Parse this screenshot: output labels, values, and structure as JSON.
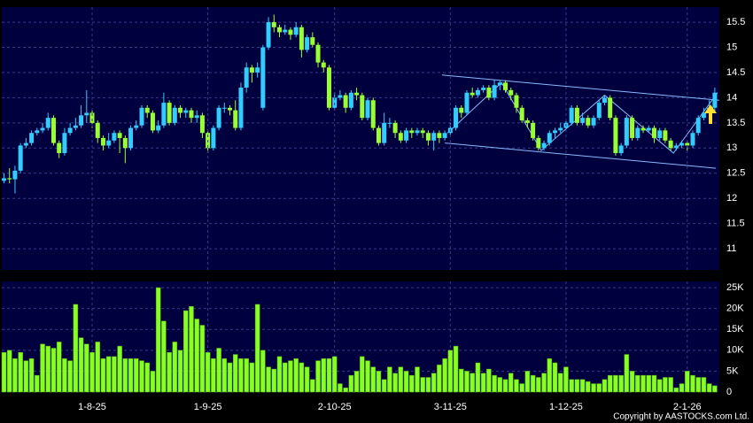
{
  "chart_data": [
    {
      "type": "candlestick",
      "up_color": "#33ccff",
      "down_color": "#99ff33",
      "grid": true,
      "ylim": [
        10.58,
        15.8
      ],
      "yticks": [
        11,
        11.5,
        12,
        12.5,
        13,
        13.5,
        14,
        14.5,
        15,
        15.5
      ],
      "open": [
        12.35,
        12.4,
        12.38,
        12.55,
        13.05,
        13.1,
        13.3,
        13.35,
        13.4,
        13.6,
        13.1,
        12.9,
        13.3,
        13.4,
        13.45,
        13.65,
        13.7,
        13.5,
        13.2,
        13.05,
        13.15,
        13.3,
        13.2,
        13.0,
        13.4,
        13.45,
        13.8,
        13.7,
        13.35,
        13.45,
        13.9,
        13.5,
        13.8,
        13.7,
        13.75,
        13.6,
        13.65,
        13.3,
        13.0,
        13.4,
        13.8,
        13.8,
        13.75,
        13.4,
        14.2,
        14.6,
        14.5,
        13.8,
        15.0,
        15.5,
        15.4,
        15.3,
        15.35,
        15.25,
        15.4,
        14.95,
        15.2,
        15.05,
        14.7,
        14.6,
        13.8,
        14.0,
        14.05,
        13.8,
        14.1,
        14.05,
        13.6,
        13.95,
        13.4,
        13.1,
        13.5,
        13.5,
        13.3,
        13.15,
        13.35,
        13.3,
        13.35,
        13.3,
        13.15,
        13.3,
        13.2,
        13.3,
        13.4,
        13.8,
        13.7,
        14.1,
        14.05,
        14.15,
        14.2,
        14.0,
        14.25,
        14.3,
        14.15,
        14.05,
        13.8,
        13.55,
        13.5,
        13.2,
        13.0,
        13.1,
        13.3,
        13.35,
        13.4,
        13.5,
        13.8,
        13.5,
        13.6,
        13.45,
        13.6,
        13.9,
        14.0,
        13.6,
        12.9,
        13.05,
        13.6,
        13.2,
        13.4,
        13.35,
        13.4,
        13.2,
        13.35,
        13.15,
        13.0,
        13.05,
        13.1,
        13.05,
        13.3,
        13.6,
        13.7,
        13.8
      ],
      "high": [
        12.5,
        12.6,
        12.65,
        13.1,
        13.2,
        13.35,
        13.4,
        13.5,
        13.7,
        13.65,
        13.15,
        13.4,
        13.5,
        13.6,
        13.85,
        14.15,
        13.75,
        13.55,
        13.25,
        13.3,
        13.35,
        13.35,
        13.25,
        13.45,
        13.55,
        13.85,
        13.85,
        13.75,
        13.55,
        14.1,
        13.95,
        13.85,
        13.85,
        13.8,
        13.8,
        13.75,
        13.7,
        13.35,
        13.45,
        13.85,
        13.9,
        13.85,
        13.95,
        14.3,
        14.7,
        14.65,
        14.7,
        15.05,
        15.6,
        15.65,
        15.45,
        15.45,
        15.4,
        15.5,
        15.45,
        15.25,
        15.3,
        15.1,
        14.75,
        14.65,
        14.1,
        14.15,
        14.1,
        14.15,
        14.2,
        14.1,
        14.0,
        14.0,
        13.45,
        13.7,
        13.6,
        13.55,
        13.35,
        13.4,
        13.4,
        13.4,
        13.4,
        13.35,
        13.35,
        13.35,
        13.35,
        13.5,
        13.85,
        13.85,
        14.15,
        14.2,
        14.2,
        14.25,
        14.25,
        14.35,
        14.35,
        14.35,
        14.2,
        14.1,
        13.85,
        13.6,
        13.55,
        13.25,
        13.15,
        13.35,
        13.4,
        13.5,
        13.55,
        13.85,
        13.85,
        13.7,
        13.65,
        13.65,
        13.95,
        14.05,
        14.05,
        13.65,
        13.1,
        13.65,
        13.65,
        13.45,
        13.45,
        13.45,
        13.45,
        13.4,
        13.4,
        13.2,
        13.1,
        13.15,
        13.15,
        13.35,
        13.65,
        13.8,
        13.95,
        14.2
      ],
      "low": [
        12.3,
        12.3,
        12.1,
        12.5,
        13.0,
        13.05,
        13.25,
        13.3,
        13.35,
        13.05,
        12.8,
        12.85,
        13.25,
        13.35,
        13.4,
        13.5,
        13.4,
        13.1,
        12.95,
        13.0,
        13.1,
        12.9,
        12.7,
        12.95,
        13.35,
        13.4,
        13.6,
        13.3,
        13.3,
        13.4,
        13.45,
        13.45,
        13.6,
        13.6,
        13.5,
        13.5,
        13.2,
        12.9,
        12.95,
        13.35,
        13.7,
        13.65,
        13.35,
        13.35,
        14.1,
        14.3,
        14.4,
        13.75,
        14.95,
        15.3,
        15.2,
        15.25,
        15.15,
        15.2,
        14.8,
        14.9,
        15.0,
        14.6,
        14.5,
        13.75,
        13.75,
        13.95,
        13.7,
        13.75,
        13.95,
        13.55,
        13.55,
        13.35,
        13.05,
        13.05,
        13.4,
        13.2,
        13.1,
        13.1,
        13.2,
        13.25,
        13.2,
        13.05,
        12.95,
        13.1,
        13.15,
        13.25,
        13.35,
        13.6,
        13.65,
        14.0,
        14.0,
        14.1,
        13.95,
        13.95,
        14.15,
        14.1,
        13.95,
        13.7,
        13.5,
        13.4,
        13.15,
        12.95,
        12.95,
        13.05,
        13.2,
        13.3,
        13.35,
        13.45,
        13.45,
        13.45,
        13.4,
        13.4,
        13.55,
        13.85,
        13.55,
        12.85,
        12.85,
        13.0,
        13.15,
        13.15,
        13.3,
        13.3,
        13.1,
        13.15,
        13.1,
        12.95,
        12.95,
        13.0,
        12.95,
        13.0,
        13.25,
        13.55,
        13.65,
        13.7
      ],
      "close": [
        12.4,
        12.38,
        12.55,
        13.05,
        13.1,
        13.3,
        13.35,
        13.4,
        13.6,
        13.1,
        12.9,
        13.3,
        13.4,
        13.45,
        13.65,
        13.7,
        13.5,
        13.2,
        13.05,
        13.15,
        13.3,
        13.2,
        13.0,
        13.4,
        13.45,
        13.8,
        13.7,
        13.35,
        13.45,
        13.9,
        13.5,
        13.8,
        13.7,
        13.75,
        13.6,
        13.65,
        13.3,
        13.0,
        13.4,
        13.8,
        13.8,
        13.75,
        13.4,
        14.2,
        14.6,
        14.5,
        14.6,
        15.0,
        15.5,
        15.4,
        15.3,
        15.35,
        15.25,
        15.4,
        14.95,
        15.2,
        15.05,
        14.7,
        14.6,
        13.8,
        14.0,
        14.05,
        13.8,
        14.1,
        14.05,
        13.6,
        13.95,
        13.4,
        13.1,
        13.5,
        13.5,
        13.3,
        13.15,
        13.35,
        13.3,
        13.35,
        13.3,
        13.15,
        13.3,
        13.2,
        13.3,
        13.4,
        13.8,
        13.7,
        14.1,
        14.05,
        14.15,
        14.2,
        14.0,
        14.25,
        14.3,
        14.15,
        14.05,
        13.8,
        13.55,
        13.5,
        13.2,
        13.0,
        13.1,
        13.3,
        13.35,
        13.4,
        13.5,
        13.8,
        13.5,
        13.6,
        13.45,
        13.6,
        13.9,
        14.0,
        13.6,
        12.9,
        13.05,
        13.6,
        13.2,
        13.4,
        13.35,
        13.4,
        13.2,
        13.35,
        13.15,
        13.0,
        13.05,
        13.1,
        13.05,
        13.3,
        13.6,
        13.7,
        13.8,
        14.1
      ],
      "trendline_color": "#88bbff",
      "trendlines": [
        {
          "x": [
            79.5,
            129.8
          ],
          "y": [
            14.45,
            13.95
          ]
        },
        {
          "x": [
            80,
            129.2
          ],
          "y": [
            13.1,
            12.6
          ]
        },
        {
          "x": [
            80.5,
            90.3,
            97.5,
            109,
            121.5,
            129.5
          ],
          "y": [
            13.3,
            14.3,
            12.95,
            14.05,
            12.9,
            14.1
          ]
        }
      ]
    },
    {
      "type": "bar",
      "color": "#88ff22",
      "grid": true,
      "categories": [
        null,
        null,
        null,
        null,
        null,
        null,
        null,
        null,
        null,
        null,
        null,
        null,
        null,
        null,
        null,
        null,
        "1-8-25",
        null,
        null,
        null,
        null,
        null,
        null,
        null,
        null,
        null,
        null,
        null,
        null,
        null,
        null,
        null,
        null,
        null,
        null,
        null,
        null,
        "1-9-25",
        null,
        null,
        null,
        null,
        null,
        null,
        null,
        null,
        null,
        null,
        null,
        null,
        null,
        null,
        null,
        null,
        null,
        null,
        null,
        null,
        null,
        null,
        "2-10-25",
        null,
        null,
        null,
        null,
        null,
        null,
        null,
        null,
        null,
        null,
        null,
        null,
        null,
        null,
        null,
        null,
        null,
        null,
        null,
        null,
        "3-11-25",
        null,
        null,
        null,
        null,
        null,
        null,
        null,
        null,
        null,
        null,
        null,
        null,
        null,
        null,
        null,
        null,
        null,
        null,
        null,
        null,
        "1-12-25",
        null,
        null,
        null,
        null,
        null,
        null,
        null,
        null,
        null,
        null,
        null,
        null,
        null,
        null,
        null,
        null,
        null,
        null,
        null,
        null,
        null,
        "2-1-26",
        null,
        null,
        null,
        null,
        null
      ],
      "values": [
        9.5,
        10,
        8,
        9.5,
        7.5,
        8,
        4,
        11.5,
        11,
        10.5,
        12,
        8,
        7.5,
        21,
        13,
        11.5,
        9.5,
        12,
        8,
        8.5,
        8.5,
        11,
        8,
        8,
        8,
        7.5,
        7,
        5,
        25,
        17,
        9.5,
        12,
        10,
        19.5,
        20.5,
        17.5,
        16,
        9.5,
        8,
        10.5,
        8,
        7,
        9,
        8,
        8,
        7,
        21,
        10,
        6,
        5.5,
        8.5,
        7,
        7.5,
        8,
        7,
        6,
        3,
        7.5,
        8,
        8,
        8.5,
        2,
        1,
        4,
        5,
        8.5,
        7.5,
        6,
        5,
        3,
        6,
        4.5,
        6,
        5,
        4,
        6,
        3.5,
        3.5,
        4.5,
        6.5,
        8,
        10,
        11,
        5.5,
        5,
        4.5,
        7,
        4.5,
        5.5,
        4,
        3.5,
        3,
        4.5,
        3,
        2,
        5,
        4,
        3.5,
        4.5,
        8,
        7,
        4.5,
        6,
        3,
        3,
        3,
        2.5,
        2,
        2,
        3,
        4,
        4,
        4,
        9,
        5,
        4,
        4,
        4,
        4,
        3,
        3.5,
        3.5,
        1,
        2,
        5,
        4,
        3.5,
        3.5,
        2,
        1.5
      ],
      "ylim": [
        0,
        26.5
      ],
      "yticks": [
        0,
        {
          "value": 5,
          "label": "5K"
        },
        {
          "value": 10,
          "label": "10K"
        },
        {
          "value": 15,
          "label": "15K"
        },
        {
          "value": 20,
          "label": "20K"
        },
        {
          "value": 25,
          "label": "25K"
        }
      ]
    }
  ],
  "copyright": "Copyright by AASTOCKS.com Ltd."
}
